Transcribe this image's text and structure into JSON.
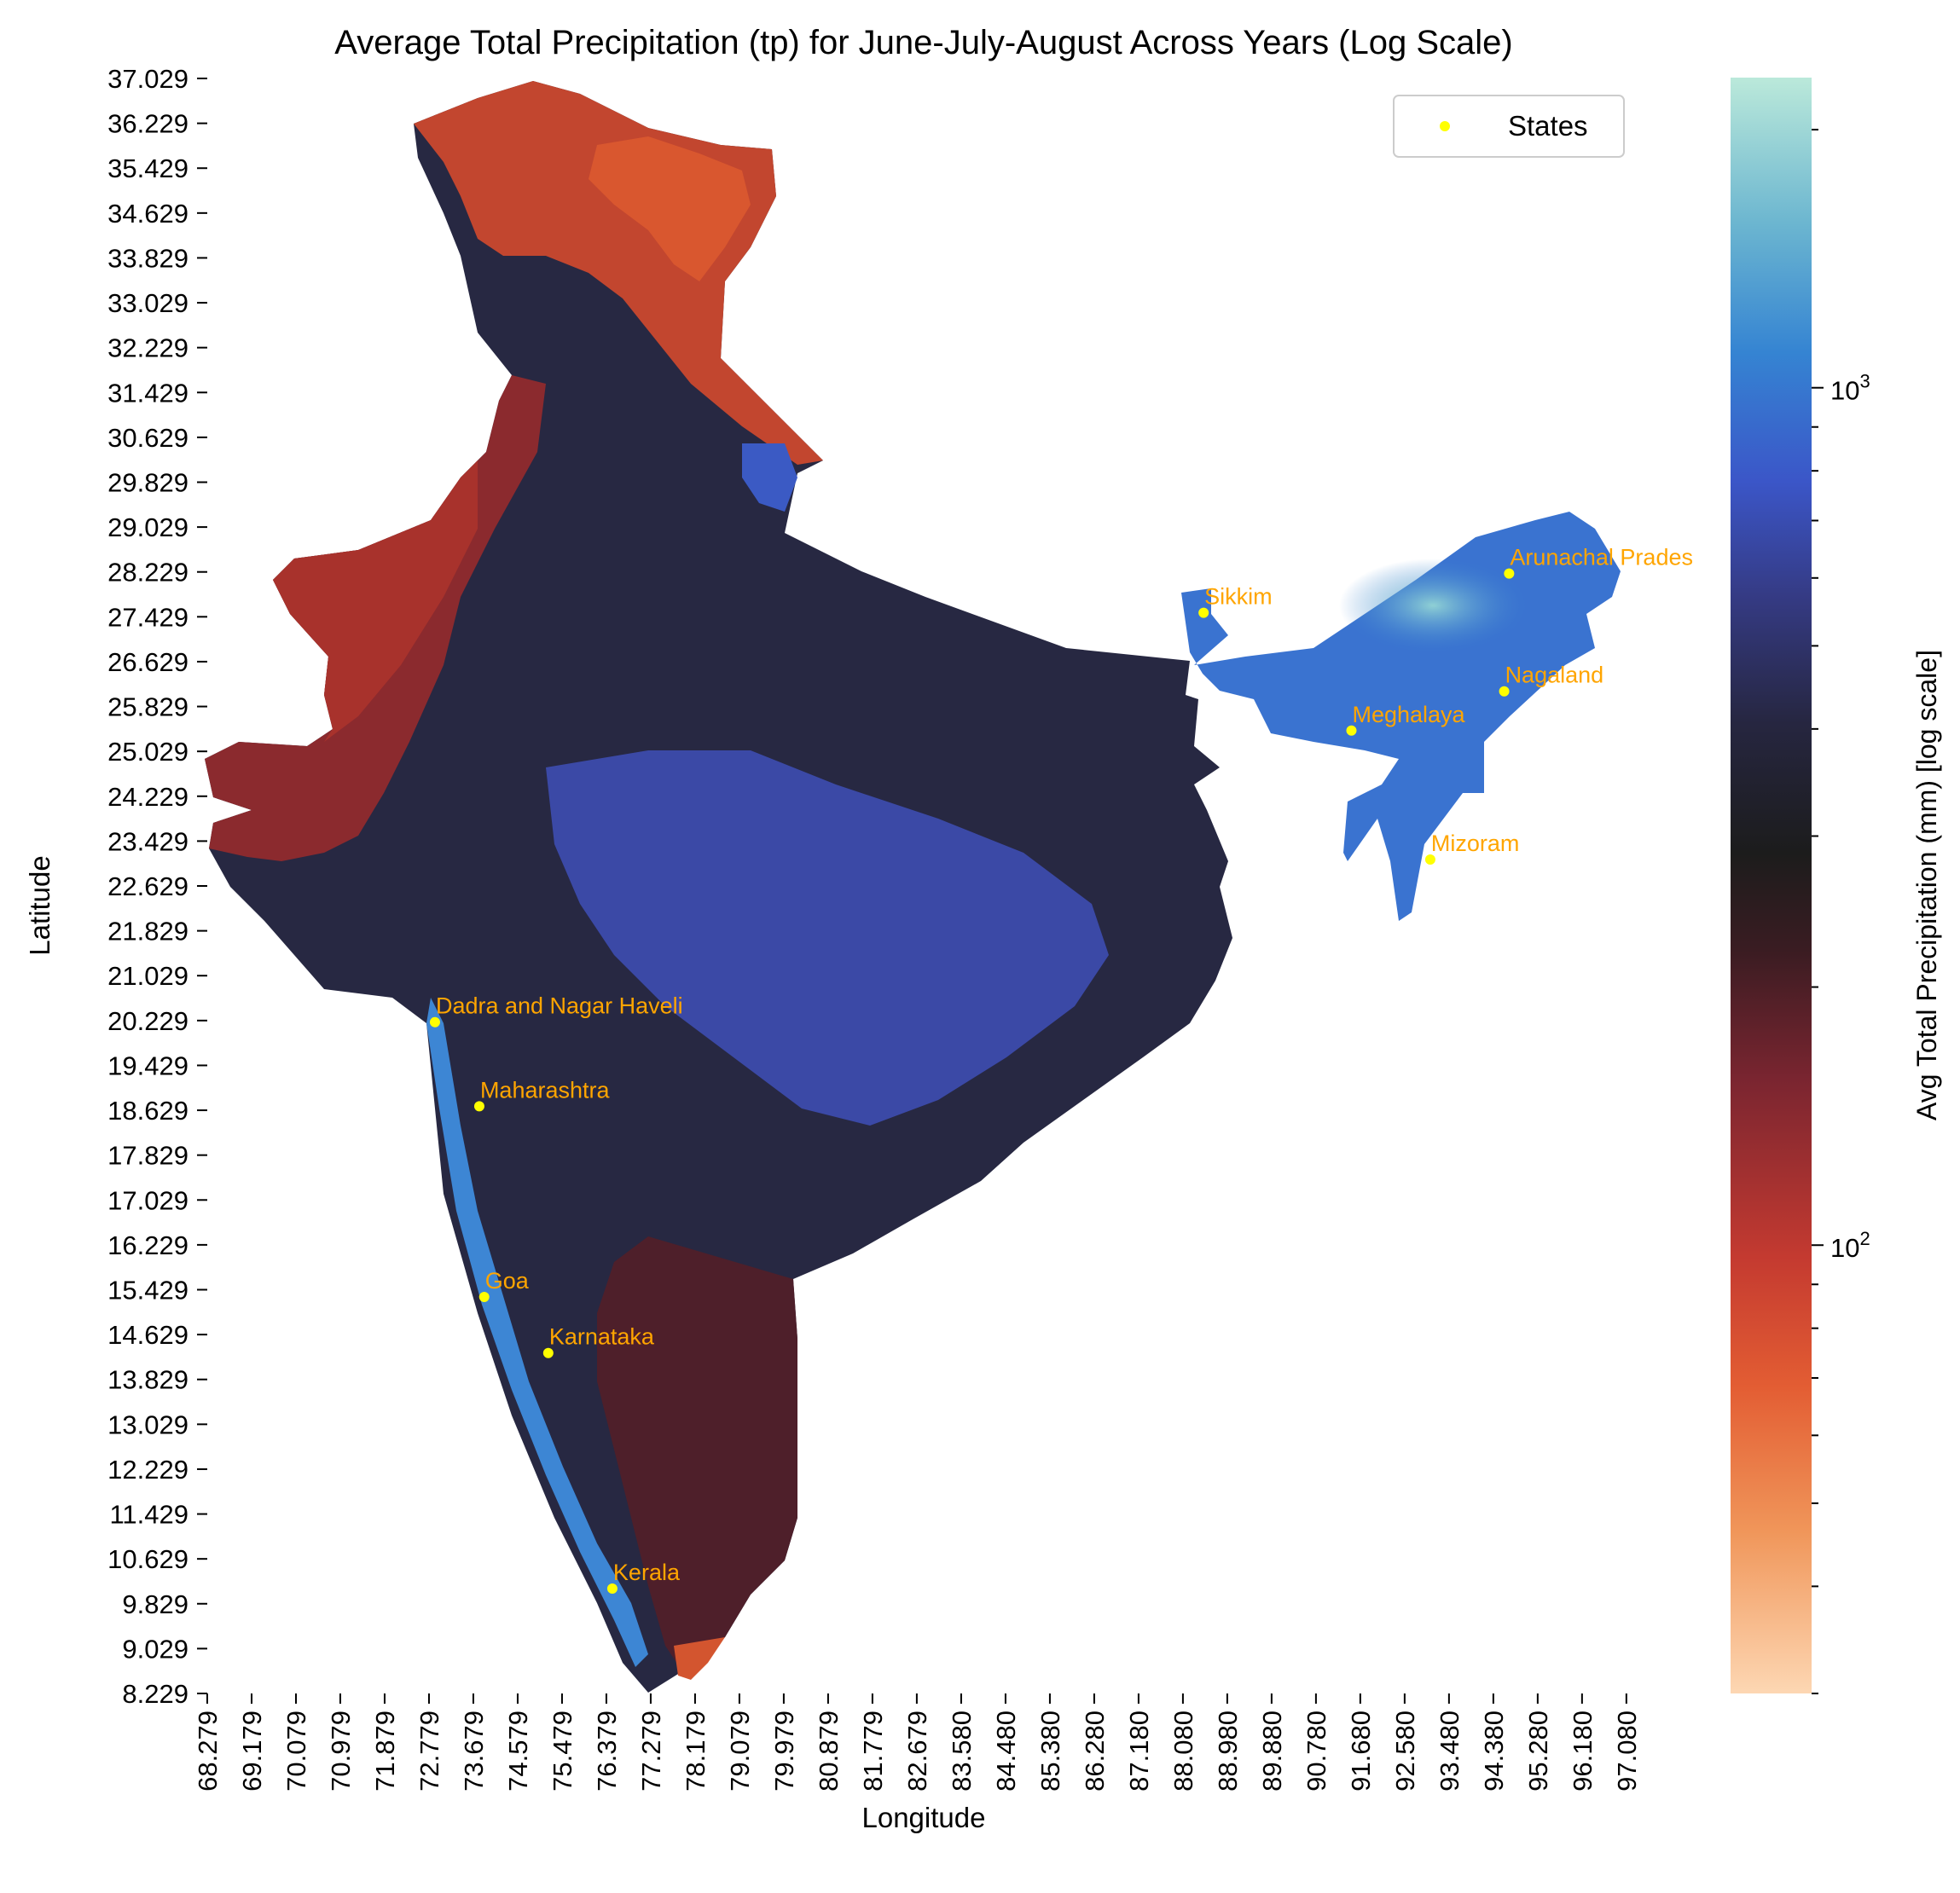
{
  "chart_data": {
    "type": "heatmap",
    "title": "Average Total Precipitation (tp) for June-July-August Across Years (Log Scale)",
    "xlabel": "Longitude",
    "ylabel": "Latitude",
    "x_ticks": [
      "68.279",
      "69.179",
      "70.079",
      "70.979",
      "71.879",
      "72.779",
      "73.679",
      "74.579",
      "75.479",
      "76.379",
      "77.279",
      "78.179",
      "79.079",
      "79.979",
      "80.879",
      "81.779",
      "82.679",
      "83.580",
      "84.480",
      "85.380",
      "86.280",
      "87.180",
      "88.080",
      "88.980",
      "89.880",
      "90.780",
      "91.680",
      "92.580",
      "93.480",
      "94.380",
      "95.280",
      "96.180",
      "97.080"
    ],
    "y_ticks": [
      "37.029",
      "36.229",
      "35.429",
      "34.629",
      "33.829",
      "33.029",
      "32.229",
      "31.429",
      "30.629",
      "29.829",
      "29.029",
      "28.229",
      "27.429",
      "26.629",
      "25.829",
      "25.029",
      "24.229",
      "23.429",
      "22.629",
      "21.829",
      "21.029",
      "20.229",
      "19.429",
      "18.629",
      "17.829",
      "17.029",
      "16.229",
      "15.429",
      "14.629",
      "13.829",
      "13.029",
      "12.229",
      "11.429",
      "10.629",
      "9.829",
      "9.029",
      "8.229"
    ],
    "xlim": [
      68.279,
      97.1
    ],
    "ylim": [
      8.229,
      37.029
    ],
    "colorbar": {
      "label": "Avg Total Precipitation (mm) [log scale]",
      "scale": "log",
      "range": [
        30,
        2300
      ],
      "tick_labels": [
        {
          "value": 100,
          "base": "10",
          "exp": "2"
        },
        {
          "value": 1000,
          "base": "10",
          "exp": "3"
        }
      ],
      "colormap": [
        "#fdd7b3",
        "#e8743a",
        "#d3462f",
        "#9a2a32",
        "#5a1f2a",
        "#1c1c1c",
        "#2a2a45",
        "#3b3f9a",
        "#3b62d8",
        "#3a8ad2",
        "#6bb8d2",
        "#bbe7d9"
      ]
    },
    "legend": {
      "label": "States",
      "marker_color": "#ffff00",
      "placement": "top-right"
    },
    "states": [
      {
        "name": "Dadra and Nagar Haveli",
        "lon": 72.9,
        "lat": 20.2
      },
      {
        "name": "Maharashtra",
        "lon": 73.8,
        "lat": 18.7
      },
      {
        "name": "Goa",
        "lon": 73.9,
        "lat": 15.3
      },
      {
        "name": "Karnataka",
        "lon": 75.2,
        "lat": 14.3
      },
      {
        "name": "Kerala",
        "lon": 76.5,
        "lat": 10.1
      },
      {
        "name": "Sikkim",
        "lon": 88.5,
        "lat": 27.5
      },
      {
        "name": "Arunachal Prades",
        "lon": 94.7,
        "lat": 28.2
      },
      {
        "name": "Nagaland",
        "lon": 94.6,
        "lat": 26.1
      },
      {
        "name": "Meghalaya",
        "lon": 91.5,
        "lat": 25.4
      },
      {
        "name": "Mizoram",
        "lon": 93.1,
        "lat": 23.1
      }
    ]
  }
}
